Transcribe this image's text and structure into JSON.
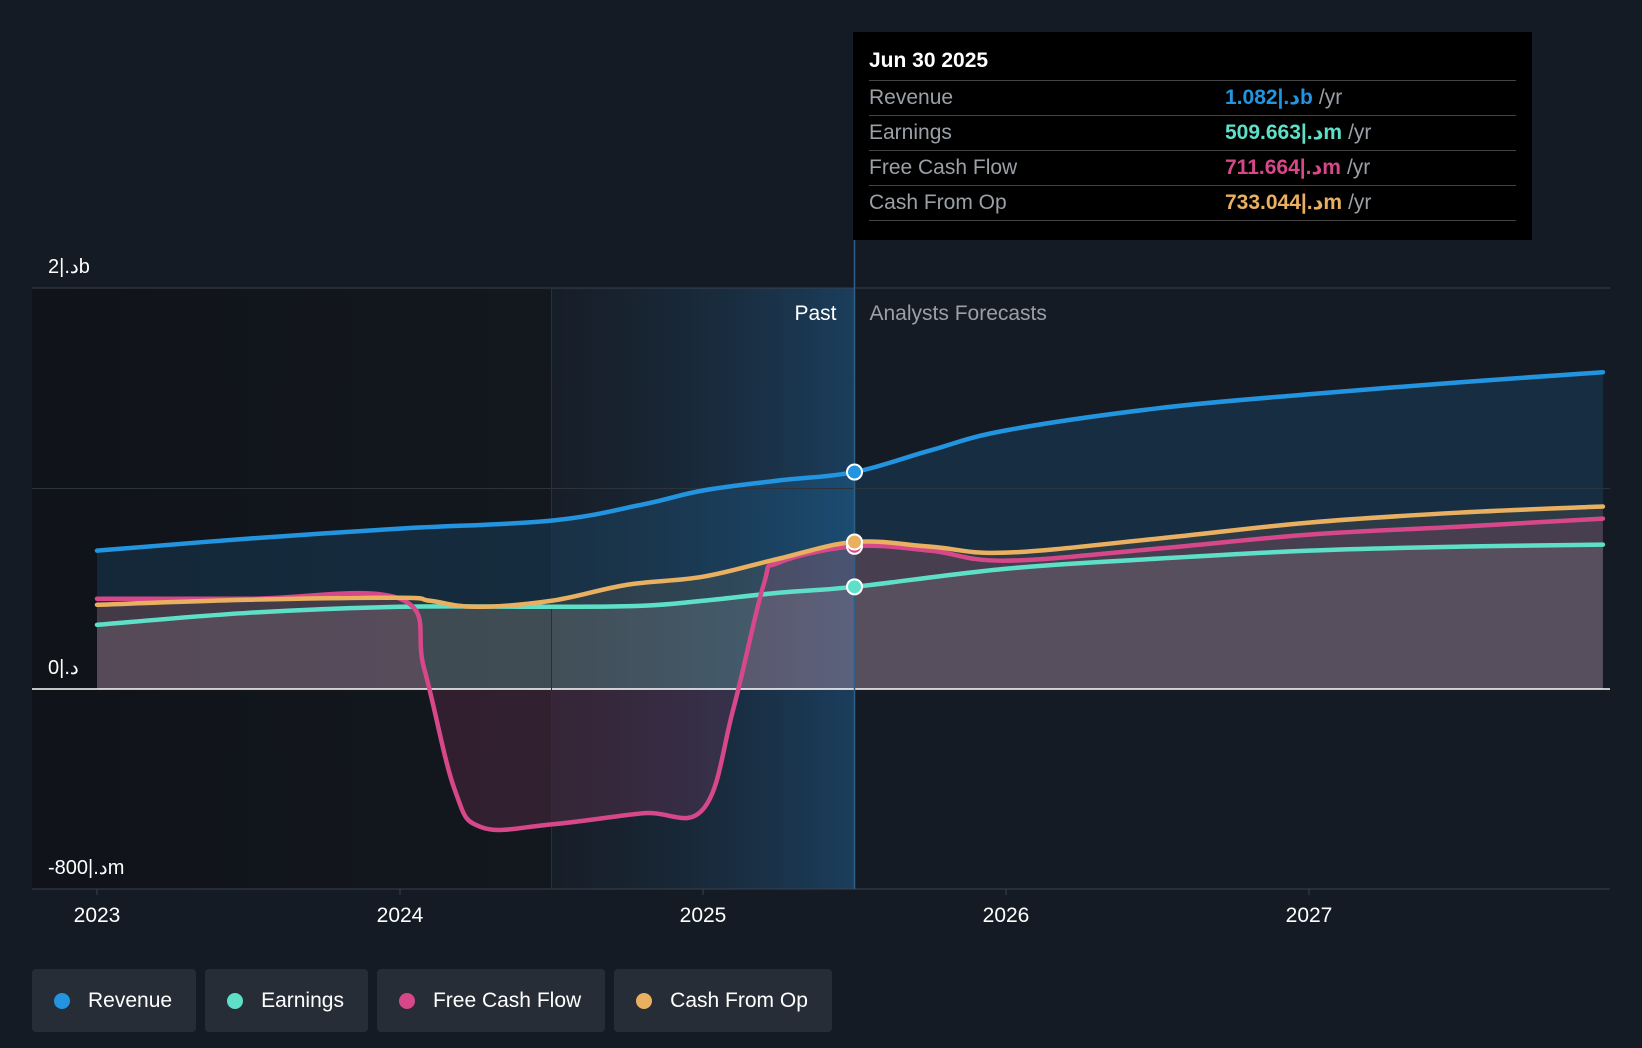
{
  "chart_data": {
    "type": "line",
    "title": "",
    "xlabel": "",
    "ylabel": "",
    "ylim": [
      -800,
      2000
    ],
    "y_ticks": [
      {
        "value": 2000,
        "label": "2|.دb"
      },
      {
        "value": 0,
        "label": "0|.د"
      },
      {
        "value": -800,
        "label": "-800|.دm"
      }
    ],
    "x_ticks": [
      {
        "value": 2023,
        "label": "2023"
      },
      {
        "value": 2024,
        "label": "2024"
      },
      {
        "value": 2025,
        "label": "2025"
      },
      {
        "value": 2026,
        "label": "2026"
      },
      {
        "value": 2027,
        "label": "2027"
      }
    ],
    "xlim": [
      2022.8,
      2027.97
    ],
    "past_label": "Past",
    "forecast_label": "Analysts Forecasts",
    "past_shade_start": 2024.5,
    "divider_x": 2025.5,
    "series": [
      {
        "name": "Revenue",
        "color": "#2394df",
        "x": [
          2023.0,
          2023.5,
          2024.0,
          2024.5,
          2024.8,
          2025.0,
          2025.25,
          2025.5,
          2025.75,
          2026.0,
          2026.5,
          2027.0,
          2027.5,
          2027.97
        ],
        "y": [
          690,
          750,
          800,
          840,
          920,
          990,
          1040,
          1082,
          1190,
          1290,
          1400,
          1470,
          1530,
          1580
        ]
      },
      {
        "name": "Earnings",
        "color": "#5ee0c8",
        "x": [
          2023.0,
          2023.5,
          2024.0,
          2024.5,
          2024.8,
          2025.0,
          2025.25,
          2025.5,
          2026.0,
          2026.5,
          2027.0,
          2027.5,
          2027.97
        ],
        "y": [
          320,
          380,
          410,
          410,
          415,
          440,
          480,
          509.663,
          600,
          650,
          690,
          710,
          720
        ]
      },
      {
        "name": "Free Cash Flow",
        "color": "#d6488a",
        "x": [
          2023.0,
          2023.5,
          2024.0,
          2024.08,
          2024.18,
          2024.27,
          2024.5,
          2024.8,
          2025.0,
          2025.1,
          2025.2,
          2025.25,
          2025.5,
          2025.75,
          2026.0,
          2026.5,
          2027.0,
          2027.5,
          2027.97
        ],
        "y": [
          450,
          450,
          450,
          100,
          -500,
          -690,
          -675,
          -620,
          -600,
          -100,
          520,
          630,
          711.664,
          690,
          640,
          700,
          770,
          810,
          850
        ]
      },
      {
        "name": "Cash From Op",
        "color": "#e8b060",
        "x": [
          2023.0,
          2023.5,
          2024.0,
          2024.1,
          2024.25,
          2024.5,
          2024.75,
          2025.0,
          2025.25,
          2025.5,
          2025.75,
          2026.0,
          2026.5,
          2027.0,
          2027.5,
          2027.97
        ],
        "y": [
          420,
          445,
          455,
          440,
          410,
          440,
          520,
          560,
          650,
          733.044,
          710,
          680,
          750,
          830,
          880,
          910
        ]
      }
    ],
    "tooltip": {
      "date": "Jun 30 2025",
      "rows": [
        {
          "label": "Revenue",
          "value": "1.082|.دb",
          "unit": "/yr",
          "color": "#2394df"
        },
        {
          "label": "Earnings",
          "value": "509.663|.دm",
          "unit": "/yr",
          "color": "#5ee0c8"
        },
        {
          "label": "Free Cash Flow",
          "value": "711.664|.دm",
          "unit": "/yr",
          "color": "#d6488a"
        },
        {
          "label": "Cash From Op",
          "value": "733.044|.دm",
          "unit": "/yr",
          "color": "#e8b060"
        }
      ]
    },
    "legend": [
      {
        "label": "Revenue",
        "color": "#2394df"
      },
      {
        "label": "Earnings",
        "color": "#5ee0c8"
      },
      {
        "label": "Free Cash Flow",
        "color": "#d6488a"
      },
      {
        "label": "Cash From Op",
        "color": "#e8b060"
      }
    ]
  }
}
